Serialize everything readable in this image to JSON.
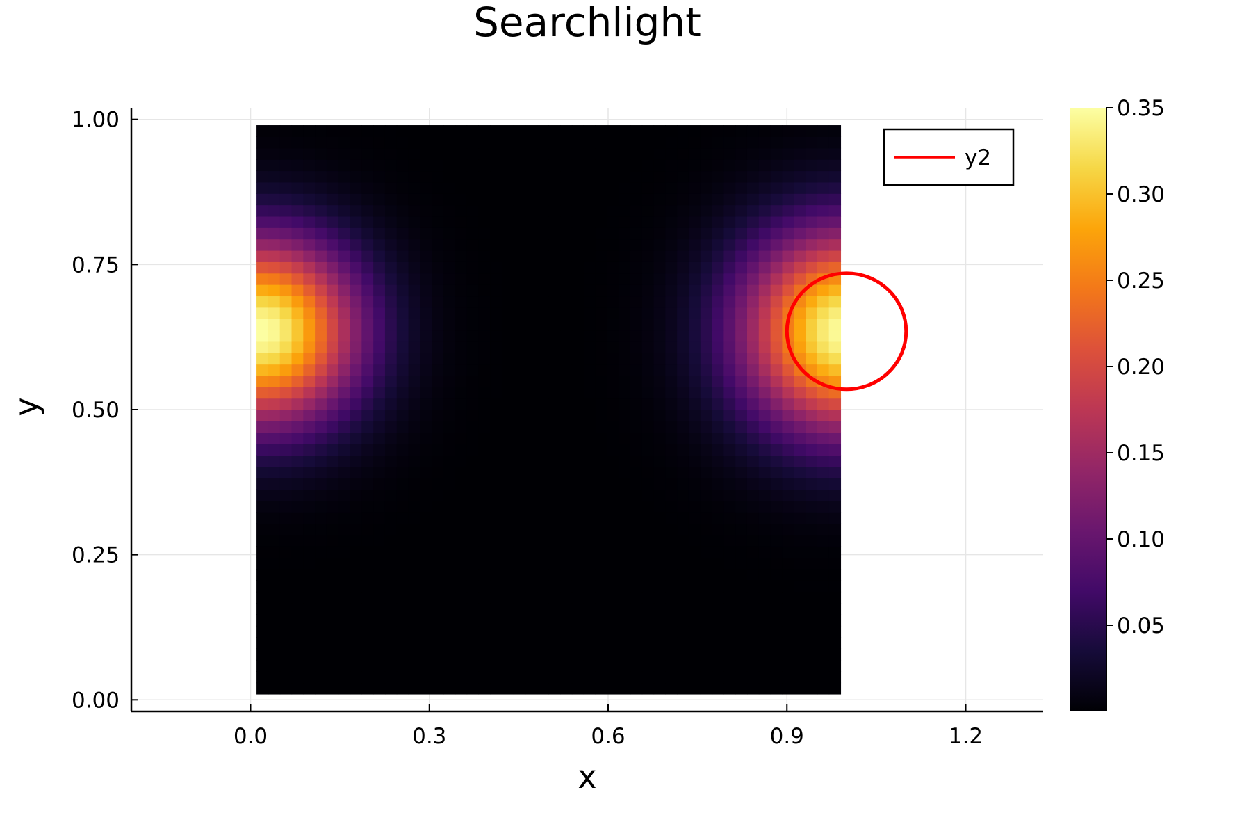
{
  "chart_data": {
    "type": "heatmap",
    "title": "Searchlight",
    "xlabel": "x",
    "ylabel": "y",
    "xlim": [
      -0.2,
      1.33
    ],
    "ylim": [
      -0.02,
      1.02
    ],
    "x_ticks": [
      0.0,
      0.3,
      0.6,
      0.9,
      1.2
    ],
    "x_tick_labels": [
      "0.0",
      "0.3",
      "0.6",
      "0.9",
      "1.2"
    ],
    "y_ticks": [
      0.0,
      0.25,
      0.5,
      0.75,
      1.0
    ],
    "y_tick_labels": [
      "0.00",
      "0.25",
      "0.50",
      "0.75",
      "1.00"
    ],
    "grid": true,
    "heatmap": {
      "x_range": [
        0.01,
        0.99
      ],
      "y_range": [
        0.01,
        0.99
      ],
      "nx": 50,
      "ny": 50,
      "colormap": "inferno",
      "peaks": [
        {
          "x": 0.02,
          "y": 0.635,
          "value": 0.35,
          "spread": 0.11
        },
        {
          "x": 1.0,
          "y": 0.635,
          "value": 0.35,
          "spread": 0.12
        }
      ]
    },
    "colorbar": {
      "range": [
        0.0,
        0.35
      ],
      "ticks": [
        0.05,
        0.1,
        0.15,
        0.2,
        0.25,
        0.3,
        0.35
      ],
      "tick_labels": [
        "0.05",
        "0.10",
        "0.15",
        "0.20",
        "0.25",
        "0.30",
        "0.35"
      ]
    },
    "series": [
      {
        "name": "y2",
        "type": "circle",
        "center": [
          1.0,
          0.635
        ],
        "radius": 0.1,
        "color": "#ff0000"
      }
    ],
    "legend": {
      "position": "top-right",
      "entries": [
        "y2"
      ]
    }
  }
}
